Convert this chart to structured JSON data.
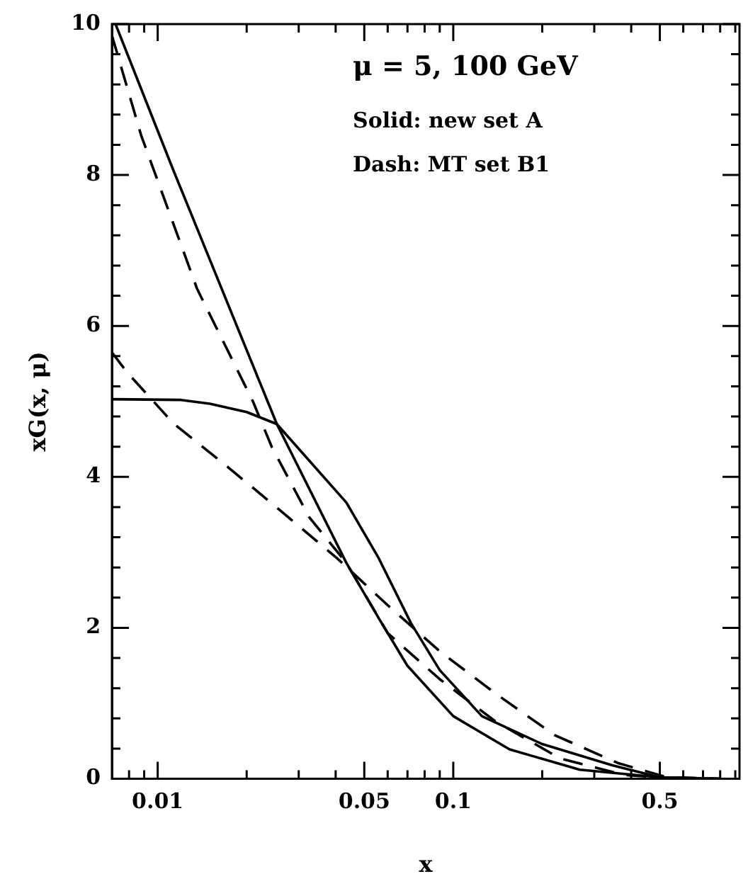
{
  "chart_data": {
    "type": "line",
    "xlabel": "x",
    "ylabel": "xG(x, μ)",
    "log": "x",
    "grid": false,
    "legend": false,
    "marker": "none",
    "annotations": [
      "μ = 5, 100 GeV",
      "Solid: new set A",
      "Dash: MT set B1"
    ],
    "xlim": [
      0.007,
      0.93
    ],
    "ylim": [
      0,
      10
    ],
    "xticks": [
      {
        "value": 0.008,
        "label": null
      },
      {
        "value": 0.009,
        "label": null
      },
      0.01,
      {
        "value": 0.02,
        "label": null
      },
      {
        "value": 0.03,
        "label": null
      },
      {
        "value": 0.04,
        "label": null
      },
      0.05,
      {
        "value": 0.06,
        "label": null
      },
      {
        "value": 0.07,
        "label": null
      },
      {
        "value": 0.08,
        "label": null
      },
      {
        "value": 0.09,
        "label": null
      },
      0.1,
      {
        "value": 0.2,
        "label": null
      },
      {
        "value": 0.3,
        "label": null
      },
      {
        "value": 0.4,
        "label": null
      },
      0.5,
      {
        "value": 0.6,
        "label": null
      },
      {
        "value": 0.7,
        "label": null
      },
      {
        "value": 0.8,
        "label": null
      },
      {
        "value": 0.9,
        "label": null
      }
    ],
    "yticks": [
      0,
      {
        "value": 0.4,
        "label": null
      },
      {
        "value": 0.8,
        "label": null
      },
      {
        "value": 1.2,
        "label": null
      },
      {
        "value": 1.6,
        "label": null
      },
      2,
      {
        "value": 2.4,
        "label": null
      },
      {
        "value": 2.8,
        "label": null
      },
      {
        "value": 3.2,
        "label": null
      },
      {
        "value": 3.6,
        "label": null
      },
      4,
      {
        "value": 4.4,
        "label": null
      },
      {
        "value": 4.8,
        "label": null
      },
      {
        "value": 5.2,
        "label": null
      },
      {
        "value": 5.6,
        "label": null
      },
      6,
      {
        "value": 6.4,
        "label": null
      },
      {
        "value": 6.8,
        "label": null
      },
      {
        "value": 7.2,
        "label": null
      },
      {
        "value": 7.6,
        "label": null
      },
      8,
      {
        "value": 8.4,
        "label": null
      },
      {
        "value": 8.8,
        "label": null
      },
      {
        "value": 9.2,
        "label": null
      },
      {
        "value": 9.6,
        "label": null
      },
      10
    ],
    "series": [
      {
        "color": "#000000",
        "line_style": "solid",
        "x": [
          0.0072,
          0.0112,
          0.0253,
          0.0435,
          0.0561,
          0.0699,
          0.1,
          0.155,
          0.268,
          0.5,
          0.8
        ],
        "values": [
          10,
          8.1,
          4.7,
          2.86,
          2.12,
          1.5,
          0.83,
          0.39,
          0.12,
          0.02,
          0
        ]
      },
      {
        "color": "#000000",
        "line_style": "solid",
        "x": [
          0.007,
          0.012,
          0.015,
          0.02,
          0.0253,
          0.0435,
          0.056,
          0.072,
          0.09,
          0.125,
          0.2,
          0.345,
          0.5,
          0.8
        ],
        "values": [
          5.03,
          5.02,
          4.97,
          4.86,
          4.7,
          3.66,
          2.92,
          2.06,
          1.44,
          0.83,
          0.46,
          0.18,
          0.02,
          0
        ]
      },
      {
        "color": "#000000",
        "line_style": "dashed",
        "x": [
          0.007,
          0.0088,
          0.0136,
          0.021,
          0.0243,
          0.0325,
          0.0435,
          0.06,
          0.09,
          0.139,
          0.23,
          0.38,
          0.6
        ],
        "values": [
          9.85,
          8.52,
          6.49,
          5.0,
          4.4,
          3.47,
          2.86,
          1.93,
          1.32,
          0.76,
          0.27,
          0.05,
          0
        ]
      },
      {
        "color": "#000000",
        "line_style": "dashed",
        "x": [
          0.007,
          0.0079,
          0.0113,
          0.0169,
          0.0252,
          0.0405,
          0.06,
          0.09,
          0.139,
          0.22,
          0.36,
          0.53,
          0.8
        ],
        "values": [
          5.65,
          5.38,
          4.71,
          4.16,
          3.6,
          2.92,
          2.3,
          1.69,
          1.13,
          0.58,
          0.21,
          0.02,
          0
        ]
      }
    ]
  }
}
